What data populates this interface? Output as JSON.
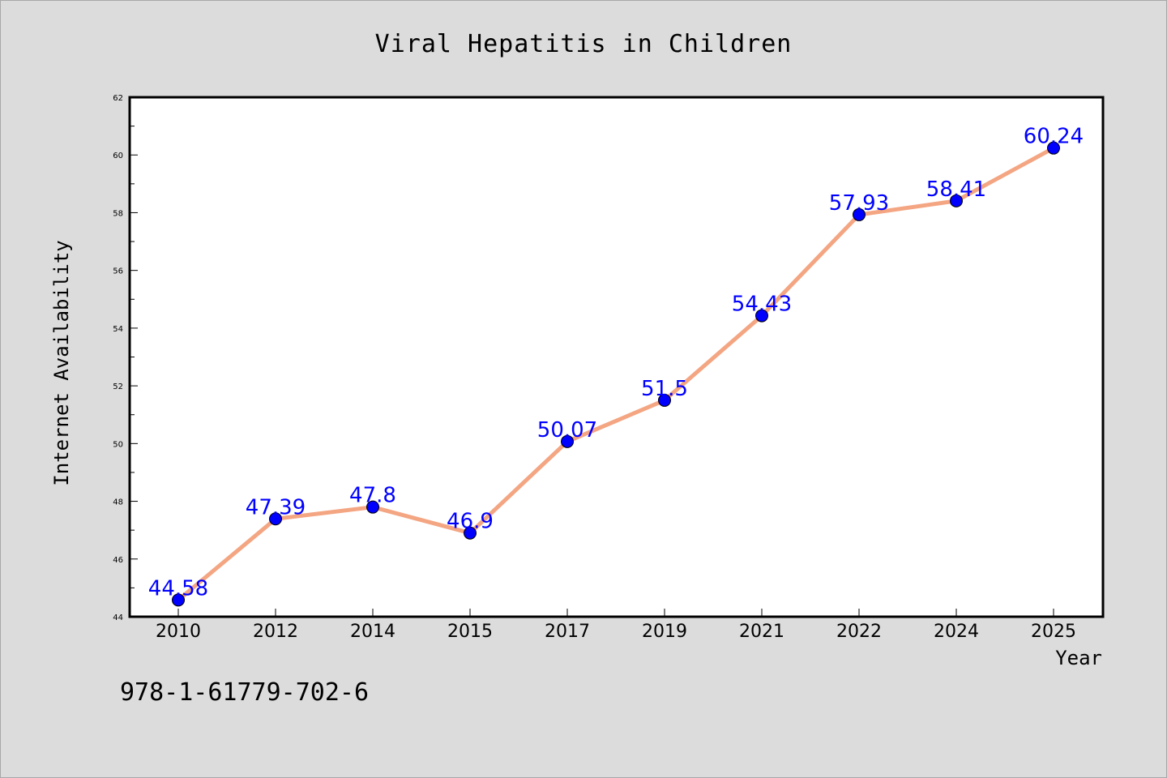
{
  "chart_data": {
    "type": "line",
    "title": "Viral Hepatitis in Children",
    "xlabel": "Year",
    "ylabel": "Internet Availability",
    "categories": [
      "2010",
      "2012",
      "2014",
      "2015",
      "2017",
      "2019",
      "2021",
      "2022",
      "2024",
      "2025"
    ],
    "values": [
      44.58,
      47.39,
      47.8,
      46.9,
      50.07,
      51.5,
      54.43,
      57.93,
      58.41,
      60.24
    ],
    "data_labels": [
      "44.58",
      "47.39",
      "47.8",
      "46.9",
      "50.07",
      "51.5",
      "54.43",
      "57.93",
      "58.41",
      "60.24"
    ],
    "ylim": [
      44,
      62
    ],
    "yticks": [
      44,
      46,
      48,
      50,
      52,
      54,
      56,
      58,
      60,
      62
    ],
    "grid": false,
    "line_color": "#f4a582",
    "marker_color": "#0000ff",
    "label_color": "#0000ff"
  },
  "annotation": {
    "isbn": "978-1-61779-702-6"
  }
}
